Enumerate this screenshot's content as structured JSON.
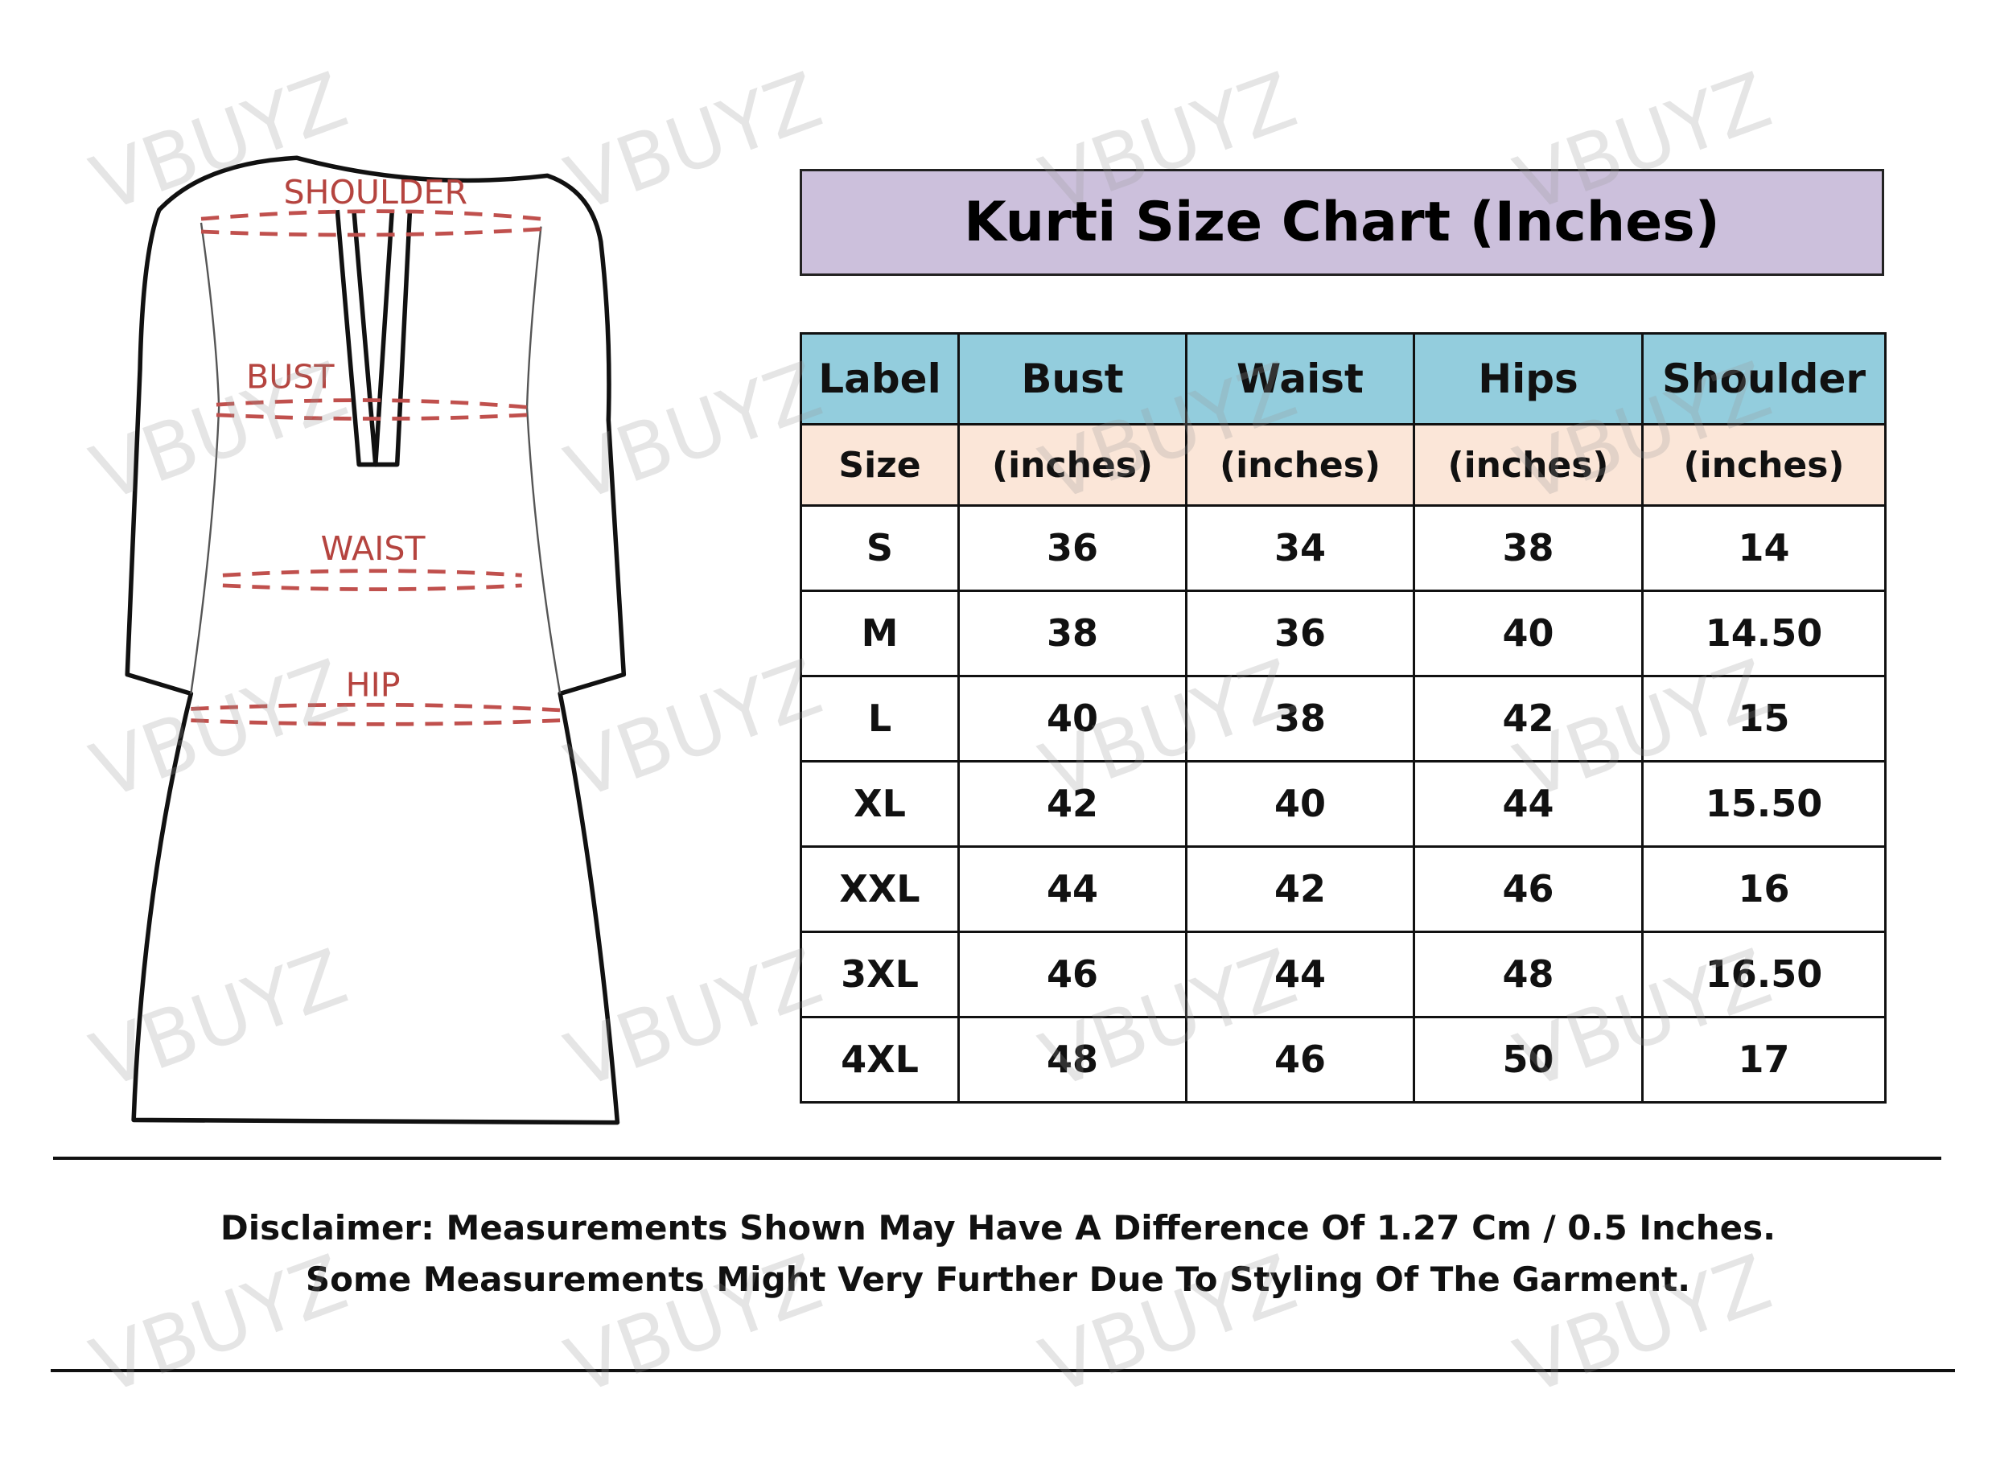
{
  "title": "Kurti Size Chart (Inches)",
  "diagram_labels": {
    "shoulder": "SHOULDER",
    "bust": "BUST",
    "waist": "WAIST",
    "hip": "HIP"
  },
  "table": {
    "headers": [
      "Label",
      "Bust",
      "Waist",
      "Hips",
      "Shoulder"
    ],
    "subheaders": [
      "Size",
      "(inches)",
      "(inches)",
      "(inches)",
      "(inches)"
    ],
    "rows": [
      [
        "S",
        "36",
        "34",
        "38",
        "14"
      ],
      [
        "M",
        "38",
        "36",
        "40",
        "14.50"
      ],
      [
        "L",
        "40",
        "38",
        "42",
        "15"
      ],
      [
        "XL",
        "42",
        "40",
        "44",
        "15.50"
      ],
      [
        "XXL",
        "44",
        "42",
        "46",
        "16"
      ],
      [
        "3XL",
        "46",
        "44",
        "48",
        "16.50"
      ],
      [
        "4XL",
        "48",
        "46",
        "50",
        "17"
      ]
    ]
  },
  "disclaimer": {
    "line1": "Disclaimer: Measurements Shown May Have A Difference Of 1.27 Cm / 0.5 Inches.",
    "line2": "Some Measurements Might Very Further Due To Styling Of The Garment."
  },
  "watermark": "VBUYZ",
  "colors": {
    "title_bg": "#ccc0dc",
    "header_bg": "#93cddd",
    "subheader_bg": "#fbe6d8",
    "measure_red": "#c0504d"
  }
}
